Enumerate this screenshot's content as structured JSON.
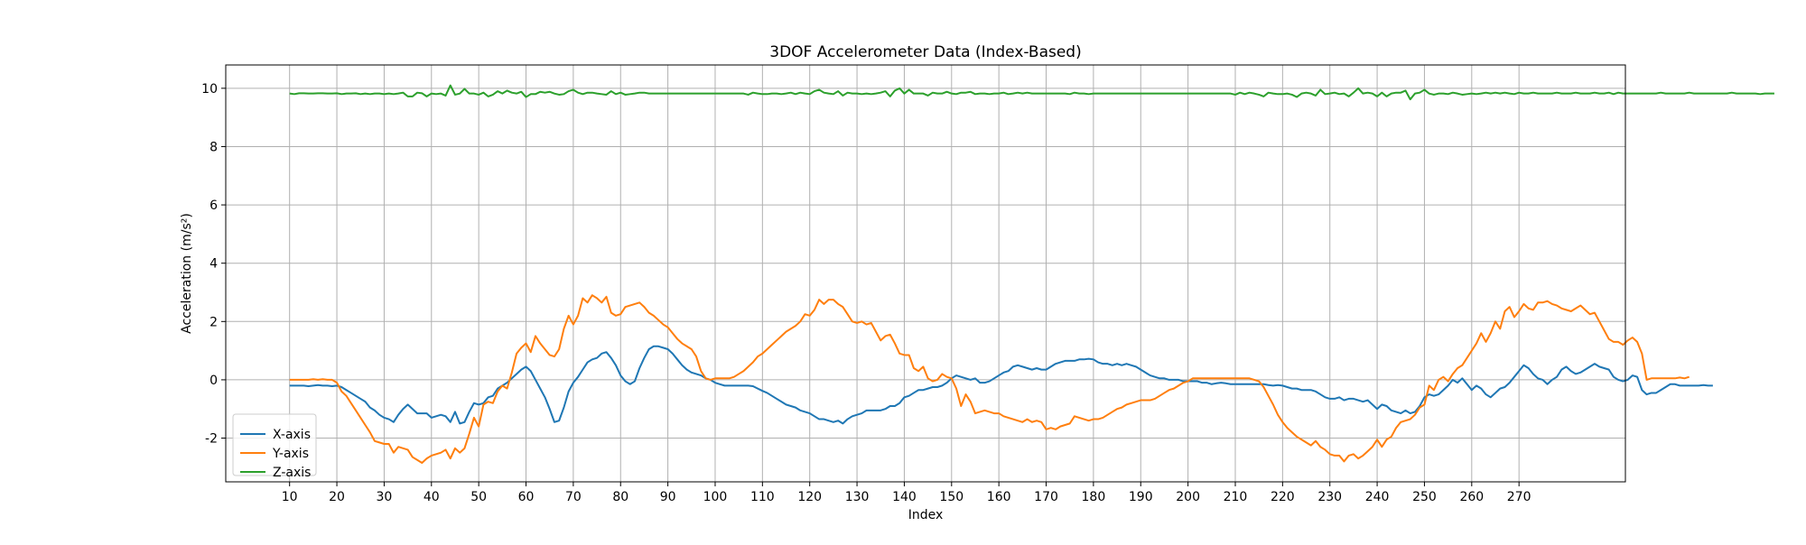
{
  "chart_data": {
    "type": "line",
    "title": "3DOF Accelerometer Data (Index-Based)",
    "xlabel": "Index",
    "ylabel": "Acceleration (m/s²)",
    "xlim": [
      -3.5,
      292.5
    ],
    "ylim": [
      -3.5,
      10.8
    ],
    "x_ticks": [
      10,
      20,
      30,
      40,
      50,
      60,
      70,
      80,
      90,
      100,
      110,
      120,
      130,
      140,
      150,
      160,
      170,
      180,
      190,
      200,
      210,
      220,
      230,
      240,
      250,
      260,
      270
    ],
    "y_ticks": [
      -2,
      0,
      2,
      4,
      6,
      8,
      10
    ],
    "grid": true,
    "legend_position": "lower-left",
    "x_start": 10,
    "x_step": 1,
    "series": [
      {
        "name": "X-axis",
        "color": "#1f77b4",
        "values": [
          -0.2,
          -0.2,
          -0.2,
          -0.2,
          -0.22,
          -0.2,
          -0.18,
          -0.2,
          -0.2,
          -0.22,
          -0.2,
          -0.25,
          -0.35,
          -0.45,
          -0.55,
          -0.65,
          -0.75,
          -0.95,
          -1.05,
          -1.2,
          -1.3,
          -1.35,
          -1.45,
          -1.2,
          -1.0,
          -0.85,
          -1.0,
          -1.15,
          -1.15,
          -1.15,
          -1.3,
          -1.25,
          -1.2,
          -1.25,
          -1.45,
          -1.1,
          -1.5,
          -1.45,
          -1.1,
          -0.8,
          -0.85,
          -0.8,
          -0.6,
          -0.55,
          -0.3,
          -0.2,
          -0.1,
          0.05,
          0.2,
          0.35,
          0.45,
          0.3,
          0.0,
          -0.3,
          -0.6,
          -1.0,
          -1.45,
          -1.4,
          -0.95,
          -0.4,
          -0.1,
          0.1,
          0.35,
          0.6,
          0.7,
          0.75,
          0.9,
          0.95,
          0.75,
          0.5,
          0.15,
          -0.05,
          -0.15,
          -0.05,
          0.4,
          0.75,
          1.05,
          1.15,
          1.15,
          1.1,
          1.05,
          0.9,
          0.7,
          0.5,
          0.35,
          0.25,
          0.2,
          0.15,
          0.05,
          0.0,
          -0.1,
          -0.15,
          -0.2,
          -0.2,
          -0.2,
          -0.2,
          -0.2,
          -0.2,
          -0.22,
          -0.3,
          -0.38,
          -0.45,
          -0.55,
          -0.65,
          -0.75,
          -0.85,
          -0.9,
          -0.95,
          -1.05,
          -1.1,
          -1.15,
          -1.25,
          -1.35,
          -1.35,
          -1.4,
          -1.45,
          -1.4,
          -1.5,
          -1.35,
          -1.25,
          -1.2,
          -1.15,
          -1.05,
          -1.05,
          -1.05,
          -1.05,
          -1.0,
          -0.9,
          -0.9,
          -0.8,
          -0.6,
          -0.55,
          -0.45,
          -0.35,
          -0.35,
          -0.3,
          -0.25,
          -0.25,
          -0.2,
          -0.1,
          0.05,
          0.15,
          0.1,
          0.05,
          0.0,
          0.05,
          -0.1,
          -0.1,
          -0.05,
          0.05,
          0.15,
          0.25,
          0.3,
          0.45,
          0.5,
          0.45,
          0.4,
          0.35,
          0.4,
          0.35,
          0.35,
          0.45,
          0.55,
          0.6,
          0.65,
          0.65,
          0.65,
          0.7,
          0.7,
          0.72,
          0.7,
          0.6,
          0.55,
          0.55,
          0.5,
          0.55,
          0.5,
          0.55,
          0.5,
          0.45,
          0.35,
          0.25,
          0.15,
          0.1,
          0.05,
          0.05,
          0.0,
          0.0,
          0.0,
          -0.05,
          -0.05,
          -0.05,
          -0.05,
          -0.1,
          -0.1,
          -0.15,
          -0.12,
          -0.1,
          -0.12,
          -0.15,
          -0.15,
          -0.15,
          -0.15,
          -0.15,
          -0.15,
          -0.15,
          -0.15,
          -0.18,
          -0.2,
          -0.18,
          -0.2,
          -0.25,
          -0.3,
          -0.3,
          -0.35,
          -0.35,
          -0.35,
          -0.4,
          -0.5,
          -0.6,
          -0.65,
          -0.65,
          -0.6,
          -0.7,
          -0.65,
          -0.65,
          -0.7,
          -0.75,
          -0.7,
          -0.85,
          -1.0,
          -0.85,
          -0.9,
          -1.05,
          -1.1,
          -1.15,
          -1.05,
          -1.15,
          -1.1,
          -0.9,
          -0.6,
          -0.5,
          -0.55,
          -0.5,
          -0.35,
          -0.2,
          0.0,
          -0.1,
          0.05,
          -0.15,
          -0.35,
          -0.2,
          -0.3,
          -0.5,
          -0.6,
          -0.45,
          -0.3,
          -0.25,
          -0.1,
          0.1,
          0.3,
          0.5,
          0.4,
          0.2,
          0.05,
          0.0,
          -0.15,
          0.0,
          0.1,
          0.35,
          0.45,
          0.3,
          0.2,
          0.25,
          0.35,
          0.45,
          0.55,
          0.45,
          0.4,
          0.35,
          0.1,
          0.0,
          -0.05,
          0.0,
          0.15,
          0.1,
          -0.35,
          -0.5,
          -0.45,
          -0.45,
          -0.35,
          -0.25,
          -0.15,
          -0.15,
          -0.2,
          -0.2,
          -0.2,
          -0.2,
          -0.2,
          -0.18,
          -0.2,
          -0.2
        ]
      },
      {
        "name": "Y-axis",
        "color": "#ff7f0e",
        "values": [
          0.0,
          0.0,
          0.0,
          0.0,
          0.0,
          0.02,
          0.0,
          0.02,
          0.0,
          0.0,
          -0.1,
          -0.4,
          -0.55,
          -0.8,
          -1.05,
          -1.3,
          -1.55,
          -1.8,
          -2.1,
          -2.15,
          -2.2,
          -2.2,
          -2.5,
          -2.3,
          -2.35,
          -2.4,
          -2.65,
          -2.75,
          -2.85,
          -2.7,
          -2.6,
          -2.55,
          -2.5,
          -2.4,
          -2.7,
          -2.35,
          -2.5,
          -2.35,
          -1.85,
          -1.3,
          -1.6,
          -0.85,
          -0.75,
          -0.8,
          -0.4,
          -0.2,
          -0.3,
          0.25,
          0.9,
          1.1,
          1.25,
          0.95,
          1.5,
          1.25,
          1.05,
          0.85,
          0.8,
          1.05,
          1.75,
          2.2,
          1.9,
          2.2,
          2.8,
          2.65,
          2.9,
          2.8,
          2.65,
          2.85,
          2.3,
          2.2,
          2.25,
          2.5,
          2.55,
          2.6,
          2.65,
          2.5,
          2.3,
          2.2,
          2.05,
          1.9,
          1.8,
          1.6,
          1.4,
          1.25,
          1.15,
          1.05,
          0.8,
          0.3,
          0.05,
          0.0,
          0.05,
          0.05,
          0.05,
          0.05,
          0.1,
          0.2,
          0.3,
          0.45,
          0.6,
          0.8,
          0.9,
          1.05,
          1.2,
          1.35,
          1.5,
          1.65,
          1.75,
          1.85,
          2.0,
          2.25,
          2.2,
          2.4,
          2.75,
          2.6,
          2.75,
          2.75,
          2.6,
          2.5,
          2.25,
          2.0,
          1.95,
          2.0,
          1.9,
          1.95,
          1.65,
          1.35,
          1.5,
          1.55,
          1.25,
          0.9,
          0.85,
          0.85,
          0.4,
          0.3,
          0.45,
          0.05,
          -0.05,
          0.0,
          0.2,
          0.1,
          0.05,
          -0.3,
          -0.9,
          -0.5,
          -0.75,
          -1.15,
          -1.1,
          -1.05,
          -1.1,
          -1.15,
          -1.15,
          -1.25,
          -1.3,
          -1.35,
          -1.4,
          -1.45,
          -1.35,
          -1.45,
          -1.4,
          -1.45,
          -1.7,
          -1.65,
          -1.7,
          -1.6,
          -1.55,
          -1.5,
          -1.25,
          -1.3,
          -1.35,
          -1.4,
          -1.35,
          -1.35,
          -1.3,
          -1.2,
          -1.1,
          -1.0,
          -0.95,
          -0.85,
          -0.8,
          -0.75,
          -0.7,
          -0.7,
          -0.7,
          -0.65,
          -0.55,
          -0.45,
          -0.35,
          -0.3,
          -0.2,
          -0.1,
          -0.05,
          0.05,
          0.05,
          0.05,
          0.05,
          0.05,
          0.05,
          0.05,
          0.05,
          0.05,
          0.05,
          0.05,
          0.05,
          0.05,
          0.0,
          -0.05,
          -0.25,
          -0.55,
          -0.85,
          -1.2,
          -1.45,
          -1.65,
          -1.8,
          -1.95,
          -2.05,
          -2.15,
          -2.25,
          -2.1,
          -2.3,
          -2.4,
          -2.55,
          -2.6,
          -2.6,
          -2.8,
          -2.6,
          -2.55,
          -2.7,
          -2.6,
          -2.45,
          -2.3,
          -2.05,
          -2.3,
          -2.05,
          -1.95,
          -1.65,
          -1.45,
          -1.4,
          -1.35,
          -1.2,
          -0.95,
          -0.85,
          -0.2,
          -0.35,
          0.0,
          0.1,
          -0.05,
          0.2,
          0.4,
          0.5,
          0.75,
          1.0,
          1.25,
          1.6,
          1.3,
          1.6,
          2.0,
          1.75,
          2.35,
          2.5,
          2.15,
          2.35,
          2.6,
          2.45,
          2.4,
          2.65,
          2.65,
          2.7,
          2.6,
          2.55,
          2.45,
          2.4,
          2.35,
          2.45,
          2.55,
          2.4,
          2.25,
          2.3,
          2.0,
          1.7,
          1.4,
          1.3,
          1.3,
          1.2,
          1.35,
          1.45,
          1.3,
          0.9,
          0.0,
          0.05,
          0.05,
          0.05,
          0.05,
          0.05,
          0.05,
          0.08,
          0.05,
          0.1
        ]
      },
      {
        "name": "Z-axis",
        "color": "#2ca02c",
        "values": [
          9.82,
          9.8,
          9.83,
          9.83,
          9.82,
          9.82,
          9.83,
          9.83,
          9.82,
          9.82,
          9.83,
          9.8,
          9.82,
          9.82,
          9.83,
          9.8,
          9.82,
          9.8,
          9.82,
          9.82,
          9.8,
          9.82,
          9.8,
          9.82,
          9.85,
          9.72,
          9.72,
          9.85,
          9.83,
          9.72,
          9.82,
          9.8,
          9.82,
          9.75,
          10.1,
          9.78,
          9.82,
          9.98,
          9.82,
          9.82,
          9.78,
          9.85,
          9.72,
          9.78,
          9.9,
          9.82,
          9.92,
          9.85,
          9.82,
          9.88,
          9.7,
          9.8,
          9.8,
          9.88,
          9.85,
          9.88,
          9.82,
          9.78,
          9.8,
          9.9,
          9.95,
          9.85,
          9.8,
          9.85,
          9.85,
          9.82,
          9.8,
          9.78,
          9.9,
          9.8,
          9.85,
          9.78,
          9.8,
          9.82,
          9.85,
          9.85,
          9.82,
          9.82,
          9.82,
          9.82,
          9.82,
          9.82,
          9.82,
          9.82,
          9.82,
          9.82,
          9.82,
          9.82,
          9.82,
          9.82,
          9.82,
          9.82,
          9.82,
          9.82,
          9.82,
          9.82,
          9.82,
          9.78,
          9.85,
          9.82,
          9.8,
          9.8,
          9.82,
          9.82,
          9.8,
          9.82,
          9.85,
          9.8,
          9.85,
          9.82,
          9.8,
          9.9,
          9.95,
          9.85,
          9.82,
          9.8,
          9.9,
          9.75,
          9.85,
          9.82,
          9.82,
          9.8,
          9.82,
          9.8,
          9.82,
          9.85,
          9.9,
          9.72,
          9.92,
          10.0,
          9.82,
          9.95,
          9.82,
          9.82,
          9.82,
          9.75,
          9.85,
          9.82,
          9.82,
          9.88,
          9.82,
          9.8,
          9.85,
          9.85,
          9.88,
          9.8,
          9.82,
          9.82,
          9.8,
          9.82,
          9.82,
          9.85,
          9.8,
          9.82,
          9.85,
          9.82,
          9.85,
          9.82,
          9.82,
          9.82,
          9.82,
          9.82,
          9.82,
          9.82,
          9.82,
          9.8,
          9.85,
          9.82,
          9.82,
          9.8,
          9.82,
          9.82,
          9.82,
          9.82,
          9.82,
          9.82,
          9.82,
          9.82,
          9.82,
          9.82,
          9.82,
          9.82,
          9.82,
          9.82,
          9.82,
          9.82,
          9.82,
          9.82,
          9.82,
          9.82,
          9.82,
          9.82,
          9.82,
          9.82,
          9.82,
          9.82,
          9.82,
          9.82,
          9.82,
          9.82,
          9.78,
          9.85,
          9.8,
          9.85,
          9.82,
          9.78,
          9.72,
          9.85,
          9.82,
          9.8,
          9.8,
          9.82,
          9.78,
          9.7,
          9.82,
          9.85,
          9.82,
          9.75,
          9.95,
          9.8,
          9.82,
          9.85,
          9.8,
          9.82,
          9.72,
          9.85,
          10.0,
          9.82,
          9.85,
          9.82,
          9.72,
          9.85,
          9.72,
          9.82,
          9.85,
          9.85,
          9.92,
          9.62,
          9.82,
          9.85,
          9.95,
          9.82,
          9.78,
          9.82,
          9.82,
          9.8,
          9.85,
          9.82,
          9.78,
          9.8,
          9.82,
          9.8,
          9.82,
          9.85,
          9.82,
          9.85,
          9.82,
          9.85,
          9.82,
          9.8,
          9.85,
          9.82,
          9.82,
          9.85,
          9.82,
          9.82,
          9.82,
          9.82,
          9.85,
          9.82,
          9.82,
          9.82,
          9.85,
          9.82,
          9.82,
          9.82,
          9.85,
          9.82,
          9.82,
          9.85,
          9.8,
          9.85,
          9.82,
          9.82,
          9.82,
          9.82,
          9.82,
          9.82,
          9.82,
          9.82,
          9.85,
          9.82,
          9.82,
          9.82,
          9.82,
          9.82,
          9.85,
          9.82,
          9.82,
          9.82,
          9.82,
          9.82,
          9.82,
          9.82,
          9.82,
          9.85,
          9.82,
          9.82,
          9.82,
          9.82,
          9.82,
          9.8,
          9.82,
          9.82,
          9.82
        ]
      }
    ]
  }
}
